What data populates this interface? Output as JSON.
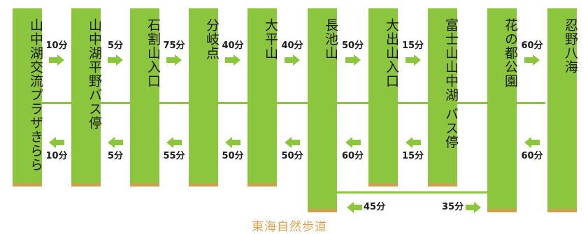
{
  "stops": [
    {
      "name": "山中湖交流プラザきらら"
    },
    {
      "name": "山中湖平野バス停"
    },
    {
      "name": "石割山入口"
    },
    {
      "name": "分岐点"
    },
    {
      "name": "大平山"
    },
    {
      "name": "長池山"
    },
    {
      "name": "大出山入口"
    },
    {
      "name": "富士山山中湖 バス停"
    },
    {
      "name": "花の都公園"
    },
    {
      "name": "忍野八海"
    }
  ],
  "segments": [
    {
      "forward": "10分",
      "back": "10分"
    },
    {
      "forward": "5分",
      "back": "5分"
    },
    {
      "forward": "75分",
      "back": "55分"
    },
    {
      "forward": "40分",
      "back": "50分"
    },
    {
      "forward": "40分",
      "back": "50分"
    },
    {
      "forward": "50分",
      "back": "60分"
    },
    {
      "forward": "15分",
      "back": "15分"
    },
    {
      "forward": "",
      "back": ""
    },
    {
      "forward": "60分",
      "back": "60分"
    }
  ],
  "bypass": {
    "left_time": "45分",
    "right_time": "35分"
  },
  "trail_name": "東海自然歩道",
  "colors": {
    "bar": "#8cc63f",
    "cap": "#c8a24e",
    "arrow": "#8cc63f",
    "trail_text": "#e0a050"
  }
}
